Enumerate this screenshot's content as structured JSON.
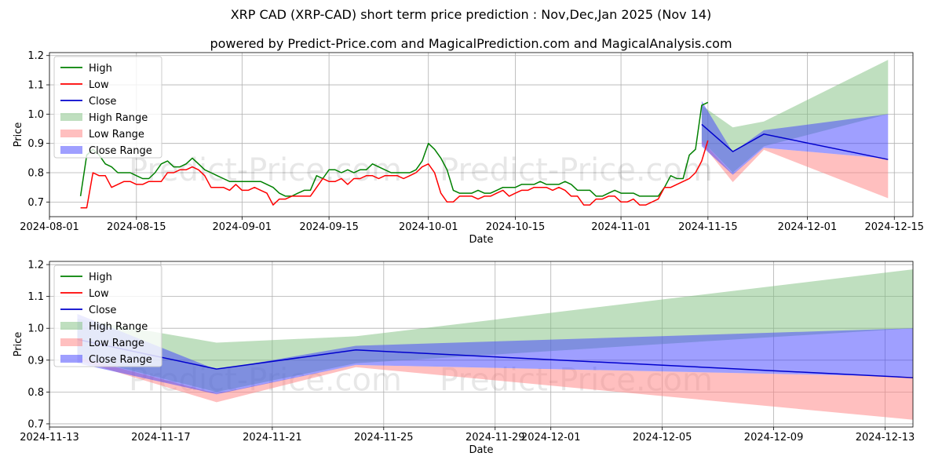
{
  "title": "XRP CAD (XRP-CAD) short term price prediction : Nov,Dec,Jan 2025 (Nov 14)",
  "subtitle": "powered by Predict-Price.com and MagicalPrediction.com and MagicalAnalysis.com",
  "watermark": "Predict-Price.com",
  "colors": {
    "high": "#008000",
    "low": "#ff0000",
    "close": "#0000cd",
    "high_range": "#80c080",
    "low_range": "#ff8080",
    "close_range": "#4040ff"
  },
  "chart_data": [
    {
      "type": "line",
      "xlabel": "Date",
      "ylabel": "Price",
      "xlim": [
        "2024-08-01",
        "2024-12-18"
      ],
      "ylim": [
        0.65,
        1.21
      ],
      "xticks": [
        "2024-08-01",
        "2024-08-15",
        "2024-09-01",
        "2024-09-15",
        "2024-10-01",
        "2024-10-15",
        "2024-11-01",
        "2024-11-15",
        "2024-12-01",
        "2024-12-15"
      ],
      "yticks": [
        0.7,
        0.8,
        0.9,
        1.0,
        1.1,
        1.2
      ],
      "ytick_labels": [
        "0.7",
        "0.8",
        "0.9",
        "1.0",
        "1.1",
        "1.2"
      ],
      "legend": [
        "High",
        "Low",
        "Close",
        "High Range",
        "Low Range",
        "Close Range"
      ],
      "legend_position": "top-left",
      "grid": true,
      "history_start": "2024-08-06",
      "history_high": [
        0.72,
        0.86,
        0.88,
        0.86,
        0.83,
        0.82,
        0.8,
        0.8,
        0.8,
        0.79,
        0.78,
        0.78,
        0.8,
        0.83,
        0.84,
        0.82,
        0.82,
        0.83,
        0.85,
        0.83,
        0.81,
        0.8,
        0.79,
        0.78,
        0.77,
        0.77,
        0.77,
        0.77,
        0.77,
        0.77,
        0.76,
        0.75,
        0.73,
        0.72,
        0.72,
        0.73,
        0.74,
        0.74,
        0.79,
        0.78,
        0.81,
        0.81,
        0.8,
        0.81,
        0.8,
        0.81,
        0.81,
        0.83,
        0.82,
        0.81,
        0.8,
        0.8,
        0.8,
        0.8,
        0.81,
        0.84,
        0.9,
        0.88,
        0.85,
        0.81,
        0.74,
        0.73,
        0.73,
        0.73,
        0.74,
        0.73,
        0.73,
        0.74,
        0.75,
        0.75,
        0.75,
        0.76,
        0.76,
        0.76,
        0.77,
        0.76,
        0.76,
        0.76,
        0.77,
        0.76,
        0.74,
        0.74,
        0.74,
        0.72,
        0.72,
        0.73,
        0.74,
        0.73,
        0.73,
        0.73,
        0.72,
        0.72,
        0.72,
        0.72,
        0.75,
        0.79,
        0.78,
        0.78,
        0.86,
        0.88,
        1.03,
        1.04
      ],
      "history_low": [
        0.68,
        0.68,
        0.8,
        0.79,
        0.79,
        0.75,
        0.76,
        0.77,
        0.77,
        0.76,
        0.76,
        0.77,
        0.77,
        0.77,
        0.8,
        0.8,
        0.81,
        0.81,
        0.82,
        0.81,
        0.79,
        0.75,
        0.75,
        0.75,
        0.74,
        0.76,
        0.74,
        0.74,
        0.75,
        0.74,
        0.73,
        0.69,
        0.71,
        0.71,
        0.72,
        0.72,
        0.72,
        0.72,
        0.75,
        0.78,
        0.77,
        0.77,
        0.78,
        0.76,
        0.78,
        0.78,
        0.79,
        0.79,
        0.78,
        0.79,
        0.79,
        0.79,
        0.78,
        0.79,
        0.8,
        0.82,
        0.83,
        0.8,
        0.73,
        0.7,
        0.7,
        0.72,
        0.72,
        0.72,
        0.71,
        0.72,
        0.72,
        0.73,
        0.74,
        0.72,
        0.73,
        0.74,
        0.74,
        0.75,
        0.75,
        0.75,
        0.74,
        0.75,
        0.74,
        0.72,
        0.72,
        0.69,
        0.69,
        0.71,
        0.71,
        0.72,
        0.72,
        0.7,
        0.7,
        0.71,
        0.69,
        0.69,
        0.7,
        0.71,
        0.75,
        0.75,
        0.76,
        0.77,
        0.78,
        0.8,
        0.84,
        0.91
      ],
      "forecast_dates": [
        "2024-11-14",
        "2024-11-19",
        "2024-11-24",
        "2024-12-14"
      ],
      "forecast_close": [
        0.965,
        0.872,
        0.932,
        0.845
      ],
      "high_range": {
        "upper": [
          1.03,
          0.955,
          0.975,
          1.185
        ],
        "lower": [
          0.91,
          0.8,
          0.89,
          1.0
        ]
      },
      "low_range": {
        "upper": [
          0.91,
          0.795,
          0.885,
          0.848
        ],
        "lower": [
          0.9,
          0.768,
          0.878,
          0.713
        ]
      },
      "close_range": {
        "upper": [
          1.045,
          0.87,
          0.945,
          1.0
        ],
        "lower": [
          0.89,
          0.793,
          0.885,
          0.848
        ]
      }
    },
    {
      "type": "line",
      "xlabel": "Date",
      "ylabel": "Price",
      "xlim": [
        "2024-11-13",
        "2024-12-14"
      ],
      "ylim": [
        0.69,
        1.21
      ],
      "xticks": [
        "2024-11-13",
        "2024-11-17",
        "2024-11-21",
        "2024-11-25",
        "2024-11-29",
        "2024-12-01",
        "2024-12-05",
        "2024-12-09",
        "2024-12-13"
      ],
      "yticks": [
        0.7,
        0.8,
        0.9,
        1.0,
        1.1,
        1.2
      ],
      "ytick_labels": [
        "0.7",
        "0.8",
        "0.9",
        "1.0",
        "1.1",
        "1.2"
      ],
      "legend": [
        "High",
        "Low",
        "Close",
        "High Range",
        "Low Range",
        "Close Range"
      ],
      "legend_position": "top-left",
      "grid": true
    }
  ]
}
